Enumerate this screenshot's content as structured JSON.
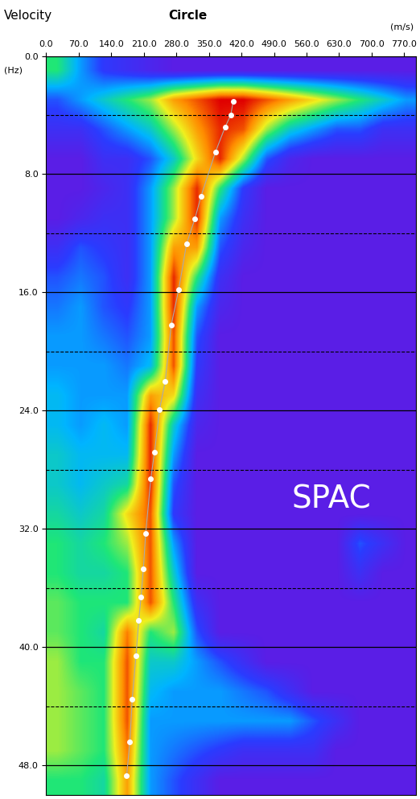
{
  "chart_data": {
    "type": "heatmap",
    "title": "Circle",
    "annotations": [
      "Velocity",
      "SPAC"
    ],
    "x_label": "(m/s)",
    "y_label": "(Hz)",
    "xlim": [
      0,
      795
    ],
    "ylim": [
      0,
      50
    ],
    "xticks": [
      {
        "value": 0,
        "label": "0.0"
      },
      {
        "value": 70,
        "label": "70.0"
      },
      {
        "value": 140,
        "label": "140.0"
      },
      {
        "value": 210,
        "label": "210.0"
      },
      {
        "value": 280,
        "label": "280.0"
      },
      {
        "value": 350,
        "label": "350.0"
      },
      {
        "value": 420,
        "label": "420.0"
      },
      {
        "value": 490,
        "label": "490.0"
      },
      {
        "value": 560,
        "label": "560.0"
      },
      {
        "value": 630,
        "label": "630.0"
      },
      {
        "value": 700,
        "label": "700.0"
      },
      {
        "value": 770,
        "label": "770.0"
      }
    ],
    "yticks": [
      {
        "value": 0,
        "label": "0.0"
      },
      {
        "value": 8,
        "label": "8.0"
      },
      {
        "value": 16,
        "label": "16.0"
      },
      {
        "value": 24,
        "label": "24.0"
      },
      {
        "value": 32,
        "label": "32.0"
      },
      {
        "value": 40,
        "label": "40.0"
      },
      {
        "value": 48,
        "label": "48.0"
      }
    ],
    "grid": true,
    "heatmap": {
      "x_range": [
        0,
        800
      ],
      "y_range": [
        0,
        50
      ],
      "value_range": [
        0,
        1
      ],
      "cells": [
        [
          0.5,
          0.3,
          0.15,
          0.1,
          0.05,
          0,
          0,
          0,
          0,
          0,
          0,
          0,
          0,
          0,
          0,
          0
        ],
        [
          0.2,
          0.3,
          0.4,
          0.5,
          0.6,
          0.8,
          0.9,
          1.0,
          1.0,
          0.9,
          0.8,
          0.7,
          0.6,
          0.5,
          0.4,
          0.3
        ],
        [
          0.1,
          0.1,
          0.2,
          0.3,
          0.4,
          0.6,
          0.8,
          0.95,
          0.9,
          0.6,
          0.4,
          0.3,
          0.2,
          0.2,
          0.1,
          0.1
        ],
        [
          0,
          0,
          0.1,
          0.1,
          0.2,
          0.4,
          0.7,
          0.95,
          0.6,
          0.2,
          0.05,
          0,
          0,
          0,
          0,
          0
        ],
        [
          0,
          0,
          0.05,
          0.1,
          0.3,
          0.6,
          0.95,
          0.5,
          0.15,
          0,
          0,
          0,
          0,
          0,
          0,
          0
        ],
        [
          0,
          0.05,
          0.1,
          0.1,
          0.3,
          0.6,
          0.95,
          0.3,
          0.1,
          0,
          0,
          0,
          0,
          0,
          0,
          0
        ],
        [
          0.1,
          0.2,
          0.15,
          0.1,
          0.3,
          0.8,
          0.8,
          0.2,
          0.05,
          0,
          0,
          0,
          0,
          0,
          0,
          0
        ],
        [
          0.2,
          0.25,
          0.2,
          0.1,
          0.3,
          0.95,
          0.5,
          0.1,
          0,
          0,
          0,
          0,
          0,
          0,
          0,
          0
        ],
        [
          0.25,
          0.3,
          0.2,
          0.15,
          0.3,
          0.95,
          0.3,
          0.05,
          0,
          0,
          0,
          0,
          0,
          0,
          0,
          0
        ],
        [
          0.3,
          0.3,
          0.25,
          0.2,
          0.3,
          0.9,
          0.2,
          0,
          0,
          0,
          0,
          0,
          0,
          0,
          0,
          0
        ],
        [
          0.3,
          0.3,
          0.3,
          0.25,
          0.35,
          0.9,
          0.15,
          0,
          0,
          0,
          0,
          0,
          0,
          0,
          0,
          0
        ],
        [
          0.35,
          0.3,
          0.3,
          0.3,
          0.8,
          0.7,
          0.1,
          0,
          0,
          0,
          0,
          0,
          0,
          0,
          0,
          0
        ],
        [
          0.35,
          0.3,
          0.35,
          0.3,
          0.95,
          0.4,
          0.05,
          0,
          0,
          0,
          0,
          0,
          0,
          0,
          0,
          0
        ],
        [
          0.4,
          0.35,
          0.35,
          0.35,
          0.95,
          0.3,
          0,
          0,
          0,
          0,
          0,
          0,
          0,
          0,
          0,
          0
        ],
        [
          0.4,
          0.35,
          0.4,
          0.45,
          0.95,
          0.2,
          0,
          0,
          0,
          0,
          0,
          0,
          0,
          0,
          0,
          0
        ],
        [
          0.45,
          0.4,
          0.45,
          0.7,
          0.9,
          0.15,
          0,
          0,
          0,
          0,
          0,
          0,
          0,
          0,
          0,
          0
        ],
        [
          0.5,
          0.45,
          0.5,
          0.6,
          0.9,
          0.3,
          0,
          0,
          0,
          0,
          0,
          0,
          0,
          0.2,
          0.1,
          0
        ],
        [
          0.5,
          0.45,
          0.45,
          0.5,
          0.9,
          0.4,
          0,
          0,
          0,
          0,
          0,
          0,
          0,
          0.1,
          0,
          0
        ],
        [
          0.55,
          0.5,
          0.5,
          0.5,
          0.9,
          0.5,
          0.1,
          0,
          0,
          0,
          0,
          0,
          0,
          0,
          0,
          0
        ],
        [
          0.55,
          0.5,
          0.45,
          0.85,
          0.5,
          0.6,
          0.2,
          0,
          0,
          0,
          0,
          0,
          0,
          0,
          0,
          0
        ],
        [
          0.6,
          0.5,
          0.5,
          0.9,
          0.4,
          0.4,
          0.3,
          0.2,
          0.1,
          0,
          0,
          0,
          0,
          0,
          0,
          0
        ],
        [
          0.6,
          0.55,
          0.5,
          0.9,
          0.35,
          0.3,
          0.3,
          0.3,
          0.25,
          0.2,
          0.1,
          0,
          0,
          0,
          0,
          0
        ],
        [
          0.6,
          0.55,
          0.5,
          0.9,
          0.3,
          0.3,
          0.3,
          0.3,
          0.3,
          0.3,
          0.3,
          0.2,
          0.1,
          0,
          0,
          0
        ],
        [
          0.6,
          0.55,
          0.5,
          0.85,
          0.3,
          0.25,
          0.2,
          0.15,
          0.1,
          0.1,
          0.1,
          0.1,
          0,
          0,
          0,
          0
        ],
        [
          0.5,
          0.5,
          0.45,
          0.8,
          0.3,
          0.2,
          0.1,
          0,
          0,
          0,
          0,
          0,
          0,
          0,
          0,
          0
        ]
      ]
    },
    "picks": {
      "color": "#ffffff",
      "marker": "o",
      "x": [
        402,
        397,
        385,
        364,
        333,
        320,
        302,
        285,
        269,
        256,
        244,
        233,
        225,
        214,
        209,
        204,
        199,
        193,
        185,
        180,
        173
      ],
      "y": [
        3.1,
        4.0,
        4.8,
        6.5,
        9.5,
        11.0,
        12.7,
        15.8,
        18.2,
        22.0,
        23.9,
        26.8,
        28.6,
        32.3,
        34.7,
        36.6,
        38.2,
        40.6,
        43.5,
        46.4,
        48.7
      ]
    }
  }
}
